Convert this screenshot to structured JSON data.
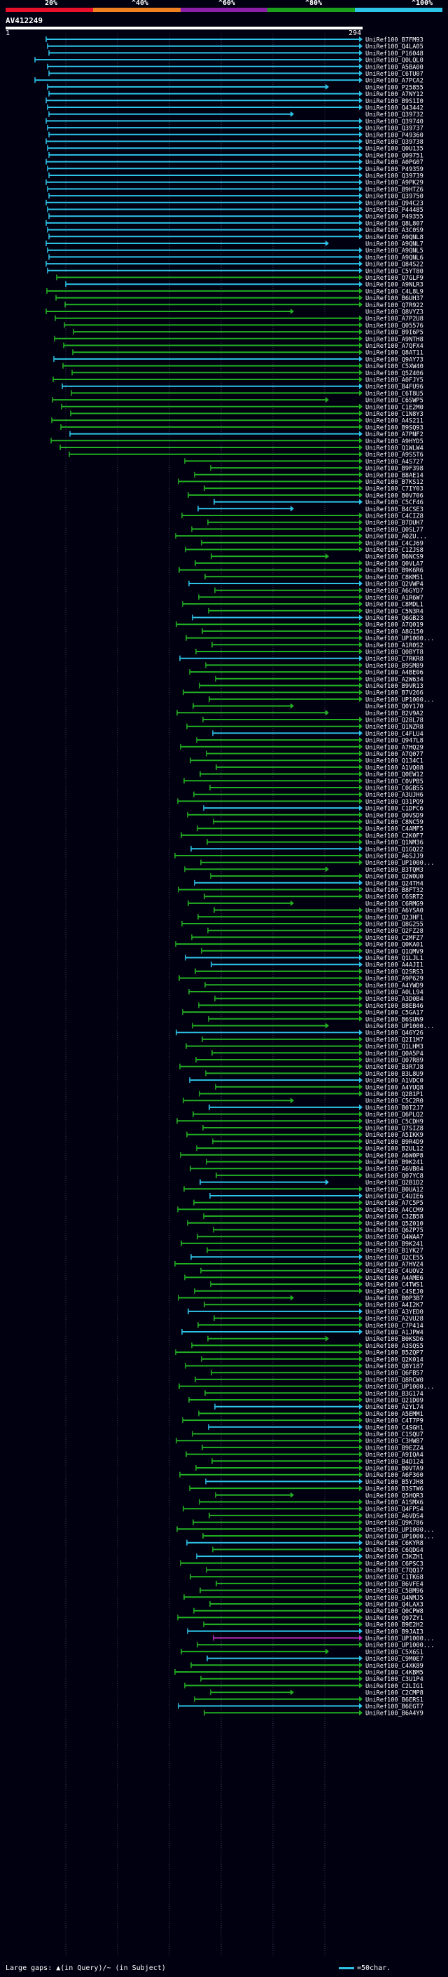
{
  "scale": {
    "labels": [
      "20%",
      "^40%",
      "^60%",
      "^80%",
      "^100%"
    ],
    "colors": [
      "#e8102a",
      "#f07f22",
      "#8b1fa8",
      "#1aa01a",
      "#2ec4e8"
    ]
  },
  "query": {
    "id": "AV412249",
    "start": "1",
    "end": "294"
  },
  "legend": {
    "left": "Large gaps: ▲(in Query)/~ (in Subject)",
    "right": "=50char."
  },
  "hit_colors": {
    "green": "#22b022",
    "cyan": "#2ec4e8",
    "magenta": "#c030c0"
  },
  "hits": {
    "labels": [
      "UniRef100_B7FM93",
      "UniRef100_Q4LA05",
      "UniRef100_P16048",
      "UniRef100_Q0LQL0",
      "UniRef100_A5BA00",
      "UniRef100_C6TU07",
      "UniRef100_A7PCA2",
      "UniRef100_P25855",
      "UniRef100_A7NY12",
      "UniRef100_B9S1I0",
      "UniRef100_Q43442",
      "UniRef100_Q39732",
      "UniRef100_Q39740",
      "UniRef100_Q39737",
      "UniRef100_P49360",
      "UniRef100_Q39738",
      "UniRef100_Q0U135",
      "UniRef100_Q09751",
      "UniRef100_A0PG07",
      "UniRef100_P49359",
      "UniRef100_Q39739",
      "UniRef100_A9PK29",
      "UniRef100_B9HTZ6",
      "UniRef100_Q39750",
      "UniRef100_Q94C23",
      "UniRef100_P44485",
      "UniRef100_P49355",
      "UniRef100_Q8L807",
      "UniRef100_A3C0S9",
      "UniRef100_A9QNL8",
      "UniRef100_A9QNL7",
      "UniRef100_A9QNL5",
      "UniRef100_A9QNL6",
      "UniRef100_Q84S22",
      "UniRef100_C5YT80",
      "UniRef100_Q7GLF9",
      "UniRef100_A9NLR3",
      "UniRef100_C4L8L9",
      "UniRef100_B6UH37",
      "UniRef100_Q7R922",
      "UniRef100_Q8VYZ3",
      "UniRef100_A7P2U8",
      "UniRef100_Q05576",
      "UniRef100_B9I6P5",
      "UniRef100_A9NTH8",
      "UniRef100_A7QFX4",
      "UniRef100_Q8AT11",
      "UniRef100_Q9AY73",
      "UniRef100_C5XW40",
      "UniRef100_Q5Z406",
      "UniRef100_A0FJY5",
      "UniRef100_B4FU96",
      "UniRef100_C6T8U5",
      "UniRef100_C6SWP5",
      "UniRef100_C1E2M0",
      "UniRef100_C1N8Y3",
      "UniRef100_A4S211",
      "UniRef100_B9SQ93",
      "UniRef100_A7PNF2",
      "UniRef100_A9HYD5",
      "UniRef100_Q1WLW4",
      "UniRef100_A9SST6",
      "UniRef100_A4S727",
      "UniRef100_B9F398",
      "UniRef100_B8AE14",
      "UniRef100_B7KS12",
      "UniRef100_C7IY03",
      "UniRef100_B0V706",
      "UniRef100_C5CF46",
      "UniRef100_B4CSE3",
      "UniRef100_C4CIZ8",
      "UniRef100_B7DUH7",
      "UniRef100_Q0SL77",
      "UniRef100_A0ZU...",
      "UniRef100_C4CJ69",
      "UniRef100_C1ZJS8",
      "UniRef100_B6NCS9",
      "UniRef100_Q0VLA7",
      "UniRef100_B9K6R6",
      "UniRef100_C8KM51",
      "UniRef100_Q2VWP4",
      "UniRef100_A6GYD7",
      "UniRef100_A1R6W7",
      "UniRef100_C8MDL1",
      "UniRef100_C5N3R4",
      "UniRef100_Q6GB23",
      "UniRef100_A7Q019",
      "UniRef100_A8G150",
      "UniRef100_UP1000...",
      "UniRef100_A1R0S2",
      "UniRef100_Q0BYT8",
      "UniRef100_C7RKR8",
      "UniRef100_B9SM89",
      "UniRef100_A4BE06",
      "UniRef100_A2W634",
      "UniRef100_B9VR13",
      "UniRef100_B7V266",
      "UniRef100_UP1000...",
      "UniRef100_Q0Y170",
      "UniRef100_B2V9A2",
      "UniRef100_Q28L78",
      "UniRef100_Q1NZR8",
      "UniRef100_C4FLU4",
      "UniRef100_Q947L8",
      "UniRef100_A7HQ29",
      "UniRef100_A7Q077",
      "UniRef100_Q134C1",
      "UniRef100_A1VQ08",
      "UniRef100_Q0EW12",
      "UniRef100_C0VPB5",
      "UniRef100_C0GB55",
      "UniRef100_A3UJH6",
      "UniRef100_Q31PQ9",
      "UniRef100_C1DFC6",
      "UniRef100_Q0VSD9",
      "UniRef100_C8NC59",
      "UniRef100_C4AMF5",
      "UniRef100_C2K0F7",
      "UniRef100_Q1NM36",
      "UniRef100_Q1GQ22",
      "UniRef100_A6SJJ9",
      "UniRef100_UP1000...",
      "UniRef100_B3TQM3",
      "UniRef100_Q2W0U0",
      "UniRef100_Q24TH4",
      "UniRef100_B8FT32",
      "UniRef100_C6SRT2",
      "UniRef100_C6RMG9",
      "UniRef100_A6YSA0",
      "UniRef100_Q2JHF1",
      "UniRef100_Q8G255",
      "UniRef100_Q2FZ28",
      "UniRef100_C2MFZ7",
      "UniRef100_Q0KA01",
      "UniRef100_Q1QMV9",
      "UniRef100_Q1LJL1",
      "UniRef100_A4AJI1",
      "UniRef100_Q2SRS3",
      "UniRef100_A9P629",
      "UniRef100_A4YWD9",
      "UniRef100_A0LL94",
      "UniRef100_A3D0B4",
      "UniRef100_B8EB46",
      "UniRef100_C5GA17",
      "UniRef100_B6SUN9",
      "UniRef100_UP1000...",
      "UniRef100_Q46Y26",
      "UniRef100_Q2I1M7",
      "UniRef100_Q1LHM3",
      "UniRef100_Q0A5P4",
      "UniRef100_Q07R89",
      "UniRef100_B3R7J8",
      "UniRef100_B3L8U9",
      "UniRef100_A1VDC0",
      "UniRef100_A4YUQ8",
      "UniRef100_Q2B1P1",
      "UniRef100_C5C2R0",
      "UniRef100_B0T2J7",
      "UniRef100_Q6PLQ2",
      "UniRef100_C5CDH9",
      "UniRef100_Q7SIZ8",
      "UniRef100_A5IKK9",
      "UniRef100_B9R4D9",
      "UniRef100_B2UL12",
      "UniRef100_A6W0P8",
      "UniRef100_B9K241",
      "UniRef100_A6VB04",
      "UniRef100_Q07YC8",
      "UniRef100_Q2B1D2",
      "UniRef100_B0UA12",
      "UniRef100_C4UIE6",
      "UniRef100_A7C5P5",
      "UniRef100_A4CCM9",
      "UniRef100_C3ZB58",
      "UniRef100_Q5Z010",
      "UniRef100_Q6ZP75",
      "UniRef100_Q4WAA7",
      "UniRef100_B9K241",
      "UniRef100_B1YK27",
      "UniRef100_Q2CE55",
      "UniRef100_A7HVZ4",
      "UniRef100_C4UOV2",
      "UniRef100_A4AME6",
      "UniRef100_C4TWS1",
      "UniRef100_C4SEJ0",
      "UniRef100_B0P3B7",
      "UniRef100_A4I2K7",
      "UniRef100_A3YED0",
      "UniRef100_A2VU28",
      "UniRef100_C7P414",
      "UniRef100_A1JPW4",
      "UniRef100_B0KSD6",
      "UniRef100_A3SQS5",
      "UniRef100_B5ZQP7",
      "UniRef100_Q2K014",
      "UniRef100_Q8Y187",
      "UniRef100_Q6FB57",
      "UniRef100_Q8RCW0",
      "UniRef100_UP1000...",
      "UniRef100_B3G174",
      "UniRef100_Q21D09",
      "UniRef100_A2YL74",
      "UniRef100_A5EMM1",
      "UniRef100_C4T7P9",
      "UniRef100_C4SGH1",
      "UniRef100_C1SQU7",
      "UniRef100_C3HW87",
      "UniRef100_B9EZZ4",
      "UniRef100_A9IQA4",
      "UniRef100_B4D124",
      "UniRef100_B0VTA9",
      "UniRef100_A6F360",
      "UniRef100_B5YJH8",
      "UniRef100_B3STW6",
      "UniRef100_Q5HQR3",
      "UniRef100_A1SMX6",
      "UniRef100_Q4FPS4",
      "UniRef100_A6VDS4",
      "UniRef100_Q9K786",
      "UniRef100_UP1000...",
      "UniRef100_UP1000...",
      "UniRef100_C6KYR8",
      "UniRef100_C6QDG4",
      "UniRef100_C3KZH1",
      "UniRef100_C6PSC3",
      "UniRef100_C7QQ17",
      "UniRef100_C1TK68",
      "UniRef100_B6VFE4",
      "UniRef100_C5BM96",
      "UniRef100_Q4NMJ5",
      "UniRef100_Q4LAX3",
      "UniRef100_Q0CPW8",
      "UniRef100_Q97ZY1",
      "UniRef100_B9E2H2",
      "UniRef100_B9JAI3",
      "UniRef100_UP1000...",
      "UniRef100_UP1000...",
      "UniRef100_C5X6S1",
      "UniRef100_C9M0E7",
      "UniRef100_C4XK89",
      "UniRef100_C4KBM5",
      "UniRef100_C3U1P4",
      "UniRef100_C2LIG1",
      "UniRef100_C2CMP8",
      "UniRef100_B6ERS1",
      "UniRef100_B6EGT7",
      "UniRef100_B6A4Y9"
    ]
  }
}
